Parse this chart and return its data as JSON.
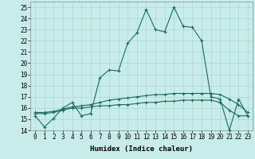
{
  "xlabel": "Humidex (Indice chaleur)",
  "xlim": [
    -0.5,
    23.5
  ],
  "ylim": [
    14,
    25.5
  ],
  "yticks": [
    14,
    15,
    16,
    17,
    18,
    19,
    20,
    21,
    22,
    23,
    24,
    25
  ],
  "xticks": [
    0,
    1,
    2,
    3,
    4,
    5,
    6,
    7,
    8,
    9,
    10,
    11,
    12,
    13,
    14,
    15,
    16,
    17,
    18,
    19,
    20,
    21,
    22,
    23
  ],
  "bg_color": "#c8ece9",
  "grid_color": "#a8d8d0",
  "line_color": "#1a6b5a",
  "line1_x": [
    0,
    1,
    2,
    3,
    4,
    5,
    6,
    7,
    8,
    9,
    10,
    11,
    12,
    13,
    14,
    15,
    16,
    17,
    18,
    19,
    20,
    21,
    22,
    23
  ],
  "line1_y": [
    15.3,
    14.3,
    15.1,
    16.0,
    16.5,
    15.3,
    15.5,
    18.7,
    19.4,
    19.3,
    21.8,
    22.7,
    24.8,
    23.0,
    22.8,
    25.0,
    23.3,
    23.2,
    22.0,
    17.0,
    16.8,
    14.0,
    16.8,
    15.3
  ],
  "line2_x": [
    0,
    1,
    2,
    3,
    4,
    5,
    6,
    7,
    8,
    9,
    10,
    11,
    12,
    13,
    14,
    15,
    16,
    17,
    18,
    19,
    20,
    21,
    22,
    23
  ],
  "line2_y": [
    15.5,
    15.5,
    15.6,
    15.8,
    16.0,
    16.0,
    16.1,
    16.2,
    16.2,
    16.3,
    16.3,
    16.4,
    16.5,
    16.5,
    16.6,
    16.6,
    16.7,
    16.7,
    16.7,
    16.7,
    16.5,
    15.8,
    15.3,
    15.3
  ],
  "line3_x": [
    0,
    1,
    2,
    3,
    4,
    5,
    6,
    7,
    8,
    9,
    10,
    11,
    12,
    13,
    14,
    15,
    16,
    17,
    18,
    19,
    20,
    21,
    22,
    23
  ],
  "line3_y": [
    15.6,
    15.6,
    15.7,
    15.9,
    16.1,
    16.2,
    16.3,
    16.5,
    16.7,
    16.8,
    16.9,
    17.0,
    17.1,
    17.2,
    17.2,
    17.3,
    17.3,
    17.3,
    17.3,
    17.3,
    17.2,
    16.8,
    16.3,
    15.6
  ],
  "fontsize_label": 6.5,
  "fontsize_tick": 5.5
}
